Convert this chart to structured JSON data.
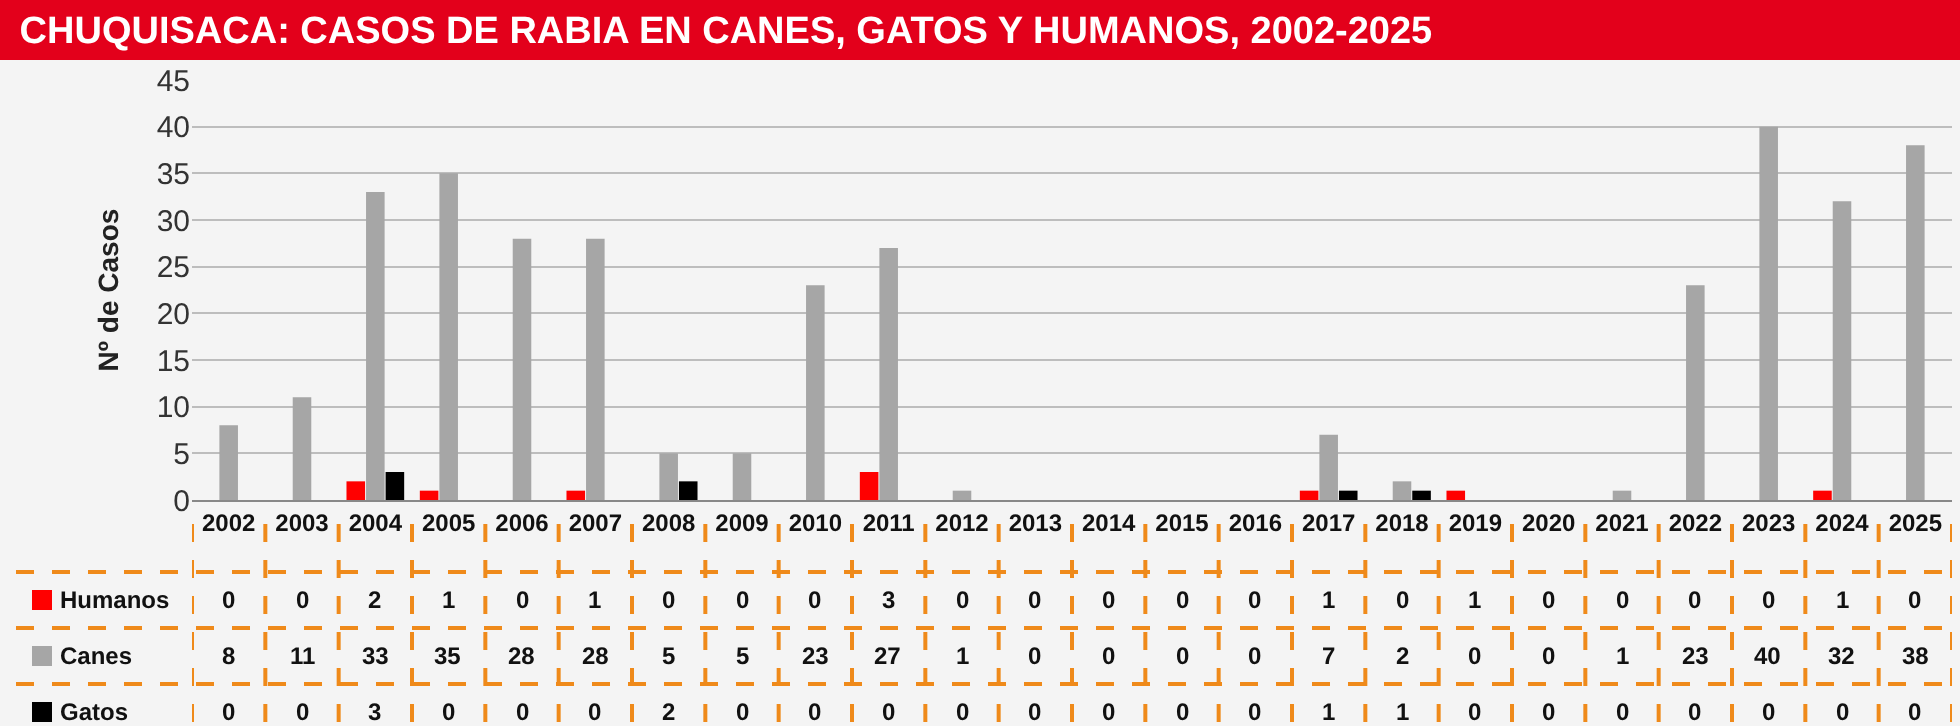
{
  "chart_data": {
    "type": "bar",
    "title": "CHUQUISACA: CASOS DE RABIA EN CANES, GATOS Y HUMANOS, 2002-2025",
    "ylabel": "Nº de Casos",
    "categories": [
      "2002",
      "2003",
      "2004",
      "2005",
      "2006",
      "2007",
      "2008",
      "2009",
      "2010",
      "2011",
      "2012",
      "2013",
      "2014",
      "2015",
      "2016",
      "2017",
      "2018",
      "2019",
      "2020",
      "2021",
      "2022",
      "2023",
      "2024",
      "2025"
    ],
    "series": [
      {
        "name": "Humanos",
        "color": "#ff0000",
        "values": [
          0,
          0,
          2,
          1,
          0,
          1,
          0,
          0,
          0,
          3,
          0,
          0,
          0,
          0,
          0,
          1,
          0,
          1,
          0,
          0,
          0,
          0,
          1,
          0
        ]
      },
      {
        "name": "Canes",
        "color": "#a6a6a6",
        "values": [
          8,
          11,
          33,
          35,
          28,
          28,
          5,
          5,
          23,
          27,
          1,
          0,
          0,
          0,
          0,
          7,
          2,
          0,
          0,
          1,
          23,
          40,
          32,
          38
        ]
      },
      {
        "name": "Gatos",
        "color": "#000000",
        "values": [
          0,
          0,
          3,
          0,
          0,
          0,
          2,
          0,
          0,
          0,
          0,
          0,
          0,
          0,
          0,
          1,
          1,
          0,
          0,
          0,
          0,
          0,
          0,
          0
        ]
      }
    ],
    "ylim": [
      0,
      45
    ],
    "yticks": [
      0,
      5,
      10,
      15,
      20,
      25,
      30,
      35,
      40,
      45
    ],
    "grid": "y",
    "data_labels": true,
    "legend": "bottom left"
  }
}
